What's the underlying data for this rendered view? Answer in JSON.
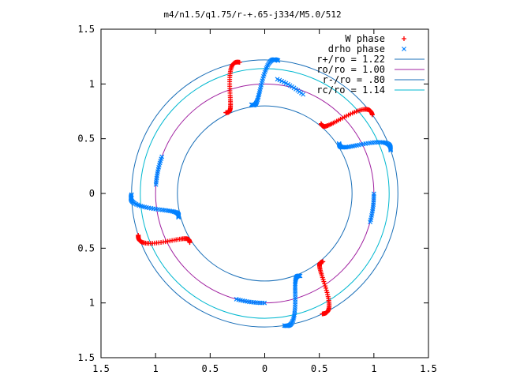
{
  "chart_data": {
    "type": "scatter",
    "title": "m4/n1.5/q1.75/r-+.65-j334/M5.0/512",
    "xlim": [
      -1.5,
      1.5
    ],
    "ylim": [
      -1.5,
      1.5
    ],
    "x_ticks": [
      -1.5,
      -1,
      -0.5,
      0,
      0.5,
      1,
      1.5
    ],
    "y_ticks": [
      -1.5,
      -1,
      -0.5,
      0,
      0.5,
      1,
      1.5
    ],
    "x_tick_labels": [
      "1.5",
      "1",
      "0.5",
      "0",
      "0.5",
      "1",
      "1.5"
    ],
    "y_tick_labels": [
      "1.5",
      "1",
      "0.5",
      "0",
      "0.5",
      "1",
      "1.5"
    ],
    "grid": false,
    "legend_position": "top-right",
    "series": [
      {
        "name": "W phase",
        "kind": "points",
        "marker": "+",
        "color": "#ff0000"
      },
      {
        "name": "drho phase",
        "kind": "points",
        "marker": "x",
        "color": "#0080ff"
      },
      {
        "name": "r+/ro = 1.22",
        "kind": "circle",
        "radius": 1.22,
        "color": "#1a6fb8"
      },
      {
        "name": "ro/ro = 1.00",
        "kind": "circle",
        "radius": 1.0,
        "color": "#a020a0"
      },
      {
        "name": "r-/ro = .80",
        "kind": "circle",
        "radius": 0.8,
        "color": "#1a6fb8"
      },
      {
        "name": "rc/ro = 1.14",
        "kind": "circle",
        "radius": 1.14,
        "color": "#00b8d0"
      }
    ],
    "arms": [
      {
        "angles": [
          1.47,
          1.72
        ],
        "radii": [
          1.22,
          0.82
        ]
      },
      {
        "angles": [
          1.76,
          2.02
        ],
        "radii": [
          1.22,
          0.82
        ]
      },
      {
        "angles": [
          3.15,
          3.41
        ],
        "radii": [
          1.22,
          0.82
        ]
      },
      {
        "angles": [
          3.46,
          3.72
        ],
        "radii": [
          1.22,
          0.82
        ]
      },
      {
        "angles": [
          4.86,
          5.12
        ],
        "radii": [
          1.22,
          0.82
        ]
      },
      {
        "angles": [
          5.16,
          5.42
        ],
        "radii": [
          1.22,
          0.82
        ]
      },
      {
        "angles": [
          0.33,
          0.59
        ],
        "radii": [
          1.22,
          0.82
        ]
      },
      {
        "angles": [
          0.63,
          0.89
        ],
        "radii": [
          1.22,
          0.82
        ]
      }
    ],
    "sparse_trails": [
      {
        "angles": [
          1.2,
          1.46
        ],
        "radii": [
          0.97,
          1.05
        ]
      },
      {
        "angles": [
          2.8,
          3.06
        ],
        "radii": [
          1.0,
          1.0
        ]
      },
      {
        "angles": [
          4.45,
          4.71
        ],
        "radii": [
          1.0,
          1.0
        ]
      },
      {
        "angles": [
          6.02,
          6.28
        ],
        "radii": [
          1.0,
          1.0
        ]
      }
    ]
  }
}
